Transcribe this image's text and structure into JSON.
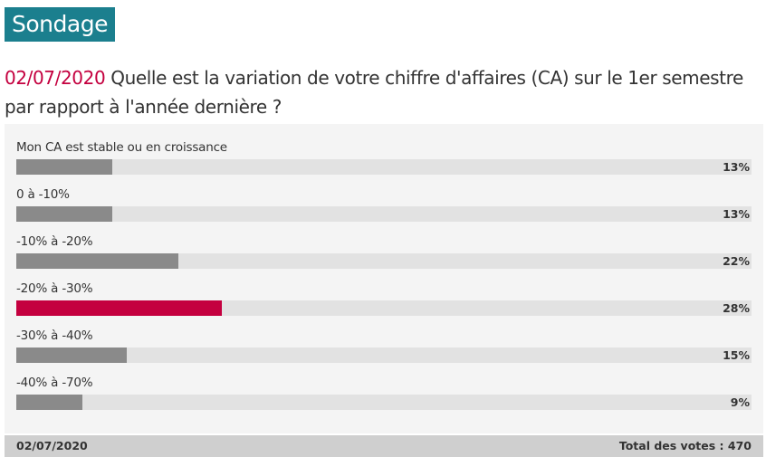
{
  "header": {
    "title": "Sondage"
  },
  "question": {
    "date": "02/07/2020",
    "text": "Quelle est la variation de votre chiffre d'affaires (CA) sur le 1er semestre par rapport à l'année dernière ?"
  },
  "options": [
    {
      "label": "Mon CA est stable ou en croissance",
      "percent": 13,
      "percent_label": "13%",
      "highlighted": false
    },
    {
      "label": "0 à -10%",
      "percent": 13,
      "percent_label": "13%",
      "highlighted": false
    },
    {
      "label": "-10% à -20%",
      "percent": 22,
      "percent_label": "22%",
      "highlighted": false
    },
    {
      "label": "-20% à -30%",
      "percent": 28,
      "percent_label": "28%",
      "highlighted": true
    },
    {
      "label": "-30% à -40%",
      "percent": 15,
      "percent_label": "15%",
      "highlighted": false
    },
    {
      "label": "-40% à -70%",
      "percent": 9,
      "percent_label": "9%",
      "highlighted": false
    }
  ],
  "footer": {
    "date": "02/07/2020",
    "total_label": "Total des votes : 470"
  },
  "colors": {
    "header_bg": "#1b7f8e",
    "accent": "#c4003f",
    "bar": "#8a8a8a",
    "track": "#e2e2e2",
    "panel": "#f4f4f4",
    "footer_bg": "#cfcfcf"
  }
}
